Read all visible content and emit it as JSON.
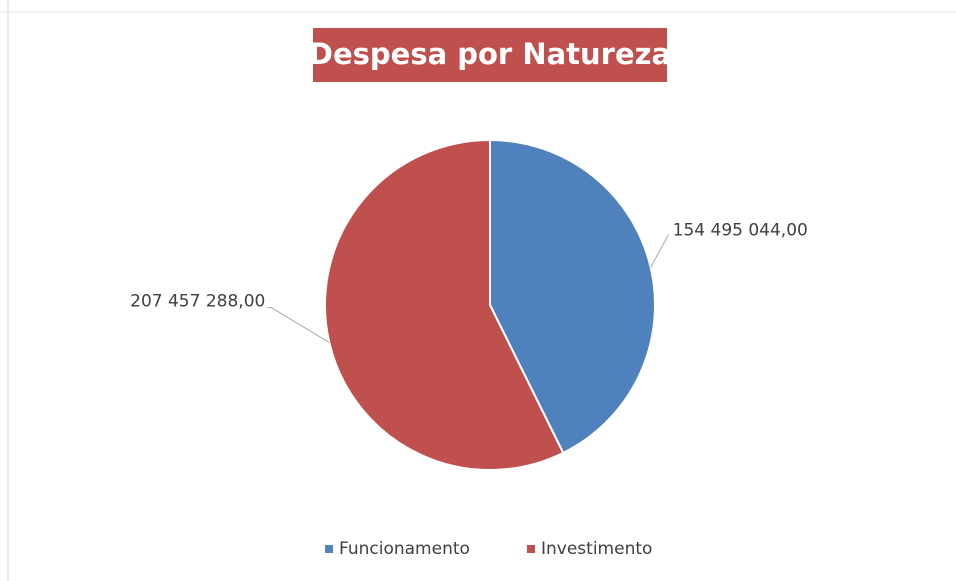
{
  "chart_data": {
    "type": "pie",
    "title": "Despesa por Natureza",
    "categories": [
      "Funcionamento",
      "Investimento"
    ],
    "values": [
      154495044,
      207457288
    ],
    "value_labels": [
      "154 495 044,00",
      "207 457 288,00"
    ],
    "colors": [
      "#4f81bd",
      "#c0504d"
    ],
    "title_color": "#c0504d",
    "legend": "bottom"
  }
}
